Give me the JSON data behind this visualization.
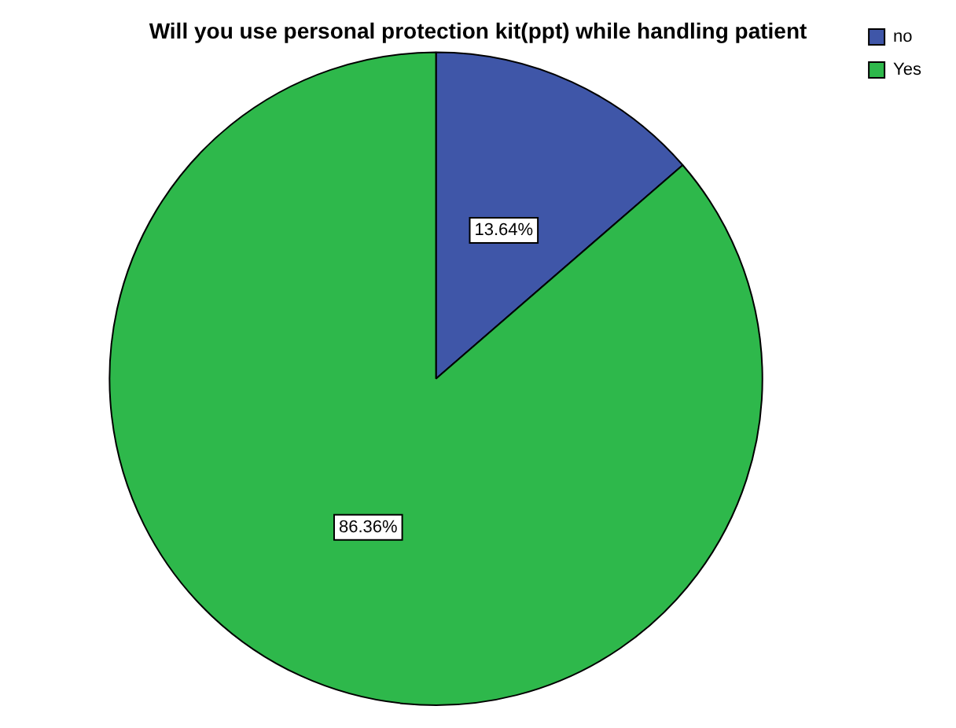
{
  "chart_data": {
    "type": "pie",
    "title": "Will you use personal protection kit(ppt) while handling patient",
    "categories": [
      "no",
      "Yes"
    ],
    "values": [
      13.64,
      86.36
    ],
    "colors": [
      "#3f56a8",
      "#2eb84b"
    ],
    "value_labels": [
      "13.64%",
      "86.36%"
    ],
    "legend": "top right"
  }
}
